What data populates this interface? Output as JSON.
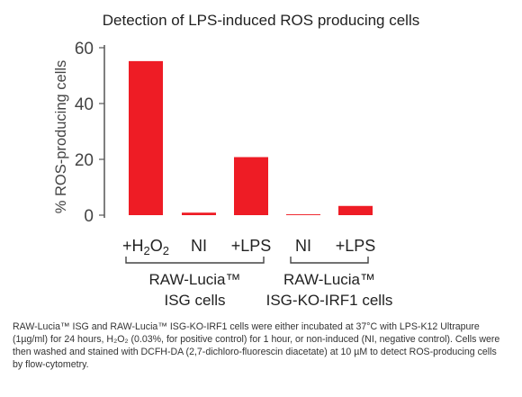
{
  "chart_data": {
    "type": "bar",
    "title": "Detection of LPS-induced ROS producing cells",
    "ylabel": "% ROS-producing cells",
    "ylim": [
      0,
      60
    ],
    "yticks": [
      "0",
      "20",
      "40",
      "60"
    ],
    "bar_color": "#ee1c25",
    "grid": false,
    "legend": "none",
    "categories": [
      "+H2O2",
      "NI",
      "+LPS",
      "NI",
      "+LPS"
    ],
    "values": [
      55.2,
      0.9,
      20.8,
      0.3,
      3.3
    ],
    "groups": [
      {
        "name": "RAW-Lucia™",
        "sub": "ISG cells",
        "members": [
          0,
          1,
          2
        ]
      },
      {
        "name": "RAW-Lucia™",
        "sub": "ISG-KO-IRF1 cells",
        "members": [
          3,
          4
        ]
      }
    ]
  },
  "caption": {
    "text": "RAW-Lucia™ ISG and RAW-Lucia™ ISG-KO-IRF1 cells were either incubated at 37°C with LPS-K12 Ultrapure (1µg/ml) for 24 hours, H₂O₂ (0.03%, for positive control) for 1 hour, or non-induced (NI, negative control). Cells were then washed and stained with DCFH-DA (2,7-dichloro-fluorescin diacetate) at 10 µM to detect ROS-producing cells by flow-cytometry."
  }
}
